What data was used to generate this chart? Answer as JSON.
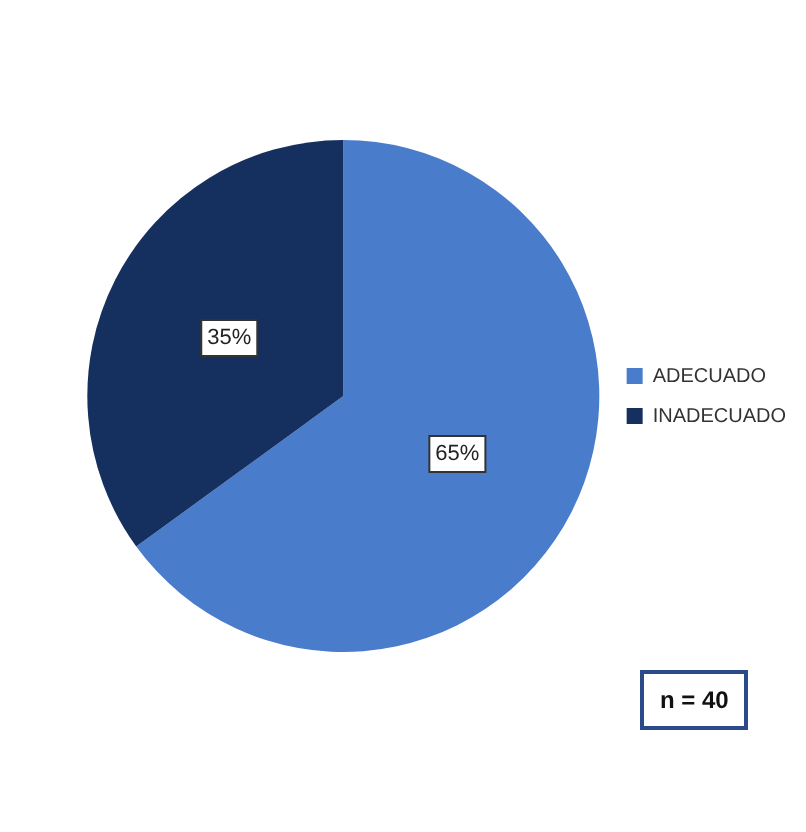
{
  "chart_data": {
    "type": "pie",
    "categories": [
      "ADECUADO",
      "INADECUADO"
    ],
    "values": [
      65,
      35
    ],
    "colors": [
      "#4a7ccc",
      "#15305e"
    ],
    "value_labels": [
      "65%",
      "35%"
    ],
    "legend": "right",
    "annotations": [
      "n = 40"
    ]
  }
}
